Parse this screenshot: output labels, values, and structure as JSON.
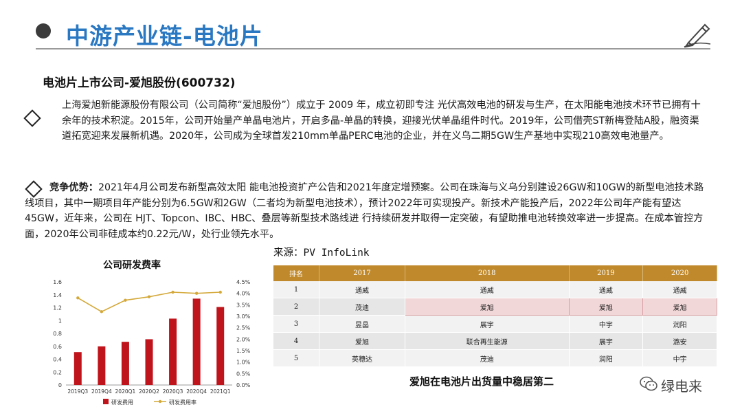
{
  "header": {
    "title": "中游产业链-电池片"
  },
  "subtitle": "电池片上市公司-爱旭股份(600732)",
  "intro": "上海爱旭新能源股份有限公司（公司简称“爱旭股份”）成立于 2009 年，成立初即专注 光伏高效电池的研发与生产，在太阳能电池技术环节已拥有十余年的技术积淀。2015年，公司开始量产单晶电池片，开启多晶-单晶的转换，迎接光伏单晶组件时代。2019年，公司借壳ST新梅登陆A股，融资渠道拓宽迎来发展新机遇。2020年，公司成为全球首发210mm单晶PERC电池的企业，并在义乌二期5GW生产基地中实现210高效电池量产。",
  "advantage": {
    "label": "竞争优势：",
    "text": "2021年4月公司发布新型高效太阳 能电池投资扩产公告和2021年度定增预案。公司在珠海与义乌分别建设26GW和10GW的新型电池技术路线项目，其中一期项目年产能分别为6.5GW和2GW（二者均为新型电池技术），预计2022年可实现投产。新技术产能投产后，2022年公司年产能有望达45GW，近年来，公司在 HJT、Topcon、IBC、HBC、叠层等新型技术路线进 行持续研发并取得一定突破，有望助推电池转换效率进一步提高。在成本管控方面，2020年公司非硅成本约0.22元/W，处行业领先水平。"
  },
  "source": "来源：PV InfoLink",
  "ranking_table": {
    "headers": [
      "排名",
      "2017",
      "2018",
      "2019",
      "2020"
    ],
    "rows": [
      [
        "1",
        "通威",
        "通威",
        "通威",
        "通威"
      ],
      [
        "2",
        "茂迪",
        "爱旭",
        "爱旭",
        "爱旭"
      ],
      [
        "3",
        "昱晶",
        "展宇",
        "中宇",
        "润阳"
      ],
      [
        "4",
        "爱旭",
        "联合再生能源",
        "展宇",
        "潞安"
      ],
      [
        "5",
        "英穗达",
        "茂迪",
        "润阳",
        "中宇"
      ]
    ],
    "caption": "爱旭在电池片出货量中稳居第二",
    "highlight_color": "#f2d7d8",
    "header_color": "#c08a2c"
  },
  "watermark": "绿电来",
  "icons": {
    "bullet": "filled-circle",
    "pen": "pen-icon",
    "diamond": "diamond-bullet",
    "wechat": "wechat-icon"
  },
  "chart_data": {
    "type": "bar",
    "title": "公司研发费率",
    "categories": [
      "2019Q3",
      "2019Q4",
      "2020Q1",
      "2020Q2",
      "2020Q3",
      "2020Q4",
      "2021Q1"
    ],
    "series": [
      {
        "name": "研发费用",
        "type": "bar",
        "axis": "left",
        "values": [
          0.51,
          0.6,
          0.67,
          0.71,
          1.03,
          1.34,
          1.21
        ],
        "color": "#c0141c"
      },
      {
        "name": "研发费用率",
        "type": "line",
        "axis": "right",
        "values": [
          3.8,
          3.2,
          3.7,
          3.85,
          4.05,
          4.0,
          4.05
        ],
        "color": "#d4a93a"
      }
    ],
    "ylim_left": [
      0,
      1.6
    ],
    "ylim_right": [
      0,
      4.5
    ],
    "yticks_left": [
      "0",
      "0.2",
      "0.4",
      "0.6",
      "0.8",
      "1",
      "1.2",
      "1.4",
      "1.6"
    ],
    "yticks_right": [
      "0.0%",
      "0.5%",
      "1.0%",
      "1.5%",
      "2.0%",
      "2.5%",
      "3.0%",
      "3.5%",
      "4.0%",
      "4.5%"
    ],
    "legend_position": "bottom"
  }
}
